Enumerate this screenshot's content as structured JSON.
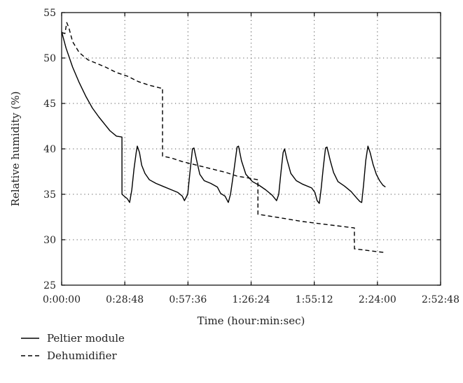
{
  "chart_data": {
    "type": "line",
    "title": "",
    "xlabel": "Time (hour:min:sec)",
    "ylabel": "Relative humidity (%)",
    "x_unit": "hour:min:sec",
    "xlim": [
      "0:00:00",
      "2:52:48"
    ],
    "ylim": [
      25,
      55
    ],
    "x_ticks": [
      "0:00:00",
      "0:28:48",
      "0:57:36",
      "1:26:24",
      "1:55:12",
      "2:24:00",
      "2:52:48"
    ],
    "y_ticks": [
      25,
      30,
      35,
      40,
      45,
      50,
      55
    ],
    "grid": true,
    "legend_position": "bottom-left",
    "series": [
      {
        "name": "Peltier module",
        "style": "solid",
        "color": "#000000",
        "points": [
          [
            "0:00:00",
            52.9
          ],
          [
            "0:02:00",
            51.1
          ],
          [
            "0:05:00",
            49.0
          ],
          [
            "0:08:00",
            47.3
          ],
          [
            "0:11:00",
            45.8
          ],
          [
            "0:14:00",
            44.5
          ],
          [
            "0:17:00",
            43.5
          ],
          [
            "0:20:00",
            42.6
          ],
          [
            "0:22:00",
            42.0
          ],
          [
            "0:25:00",
            41.4
          ],
          [
            "0:27:30",
            41.3
          ],
          [
            "0:27:31",
            35.0
          ],
          [
            "0:28:30",
            34.8
          ],
          [
            "0:30:00",
            34.5
          ],
          [
            "0:31:00",
            34.1
          ],
          [
            "0:32:00",
            35.5
          ],
          [
            "0:33:00",
            37.8
          ],
          [
            "0:34:00",
            39.6
          ],
          [
            "0:34:30",
            40.3
          ],
          [
            "0:35:30",
            39.6
          ],
          [
            "0:36:30",
            38.2
          ],
          [
            "0:38:00",
            37.3
          ],
          [
            "0:40:00",
            36.6
          ],
          [
            "0:43:00",
            36.2
          ],
          [
            "0:46:00",
            35.9
          ],
          [
            "0:50:00",
            35.5
          ],
          [
            "0:53:00",
            35.2
          ],
          [
            "0:55:00",
            34.8
          ],
          [
            "0:56:00",
            34.3
          ],
          [
            "0:57:30",
            35.0
          ],
          [
            "0:58:30",
            37.4
          ],
          [
            "0:59:40",
            40.0
          ],
          [
            "1:00:20",
            40.1
          ],
          [
            "1:01:30",
            38.8
          ],
          [
            "1:03:00",
            37.2
          ],
          [
            "1:05:00",
            36.5
          ],
          [
            "1:08:00",
            36.2
          ],
          [
            "1:11:00",
            35.8
          ],
          [
            "1:12:30",
            35.1
          ],
          [
            "1:14:30",
            34.8
          ],
          [
            "1:16:00",
            34.1
          ],
          [
            "1:17:00",
            35.0
          ],
          [
            "1:18:30",
            37.5
          ],
          [
            "1:20:00",
            40.2
          ],
          [
            "1:20:40",
            40.3
          ],
          [
            "1:22:00",
            38.7
          ],
          [
            "1:24:00",
            37.2
          ],
          [
            "1:27:00",
            36.4
          ],
          [
            "1:30:00",
            36.0
          ],
          [
            "1:33:00",
            35.5
          ],
          [
            "1:36:00",
            34.9
          ],
          [
            "1:38:00",
            34.3
          ],
          [
            "1:39:00",
            35.0
          ],
          [
            "1:40:00",
            37.4
          ],
          [
            "1:41:00",
            39.6
          ],
          [
            "1:41:40",
            40.0
          ],
          [
            "1:42:40",
            38.9
          ],
          [
            "1:44:30",
            37.3
          ],
          [
            "1:47:00",
            36.5
          ],
          [
            "1:50:00",
            36.1
          ],
          [
            "1:54:00",
            35.7
          ],
          [
            "1:55:30",
            35.2
          ],
          [
            "1:56:30",
            34.3
          ],
          [
            "1:57:30",
            34.0
          ],
          [
            "1:58:20",
            35.6
          ],
          [
            "1:59:20",
            38.0
          ],
          [
            "2:00:20",
            40.1
          ],
          [
            "2:01:00",
            40.2
          ],
          [
            "2:02:30",
            38.7
          ],
          [
            "2:04:00",
            37.4
          ],
          [
            "2:06:00",
            36.4
          ],
          [
            "2:09:00",
            35.9
          ],
          [
            "2:12:00",
            35.3
          ],
          [
            "2:14:30",
            34.6
          ],
          [
            "2:16:00",
            34.2
          ],
          [
            "2:16:50",
            34.1
          ],
          [
            "2:17:40",
            36.0
          ],
          [
            "2:18:40",
            38.7
          ],
          [
            "2:19:40",
            40.3
          ],
          [
            "2:20:40",
            39.6
          ],
          [
            "2:22:00",
            38.3
          ],
          [
            "2:23:30",
            37.2
          ],
          [
            "2:25:00",
            36.5
          ],
          [
            "2:26:30",
            36.0
          ],
          [
            "2:27:40",
            35.8
          ]
        ]
      },
      {
        "name": "Dehumidifier",
        "style": "dashed",
        "color": "#000000",
        "points": [
          [
            "0:00:00",
            52.8
          ],
          [
            "0:01:30",
            52.7
          ],
          [
            "0:02:20",
            53.9
          ],
          [
            "0:03:20",
            53.3
          ],
          [
            "0:05:00",
            51.8
          ],
          [
            "0:08:00",
            50.6
          ],
          [
            "0:12:00",
            49.8
          ],
          [
            "0:16:00",
            49.4
          ],
          [
            "0:20:00",
            49.0
          ],
          [
            "0:25:00",
            48.4
          ],
          [
            "0:30:00",
            48.0
          ],
          [
            "0:35:00",
            47.4
          ],
          [
            "0:40:00",
            47.0
          ],
          [
            "0:45:00",
            46.7
          ],
          [
            "0:46:00",
            46.7
          ],
          [
            "0:46:01",
            39.2
          ],
          [
            "0:50:00",
            39.0
          ],
          [
            "0:55:00",
            38.6
          ],
          [
            "1:00:00",
            38.3
          ],
          [
            "1:05:00",
            38.0
          ],
          [
            "1:10:00",
            37.7
          ],
          [
            "1:15:00",
            37.4
          ],
          [
            "1:20:00",
            37.0
          ],
          [
            "1:25:00",
            36.8
          ],
          [
            "1:29:30",
            36.6
          ],
          [
            "1:29:31",
            32.8
          ],
          [
            "1:40:00",
            32.4
          ],
          [
            "1:50:00",
            32.0
          ],
          [
            "2:00:00",
            31.7
          ],
          [
            "2:10:00",
            31.4
          ],
          [
            "2:13:30",
            31.3
          ],
          [
            "2:13:31",
            29.0
          ],
          [
            "2:20:00",
            28.8
          ],
          [
            "2:27:00",
            28.6
          ]
        ]
      }
    ]
  }
}
